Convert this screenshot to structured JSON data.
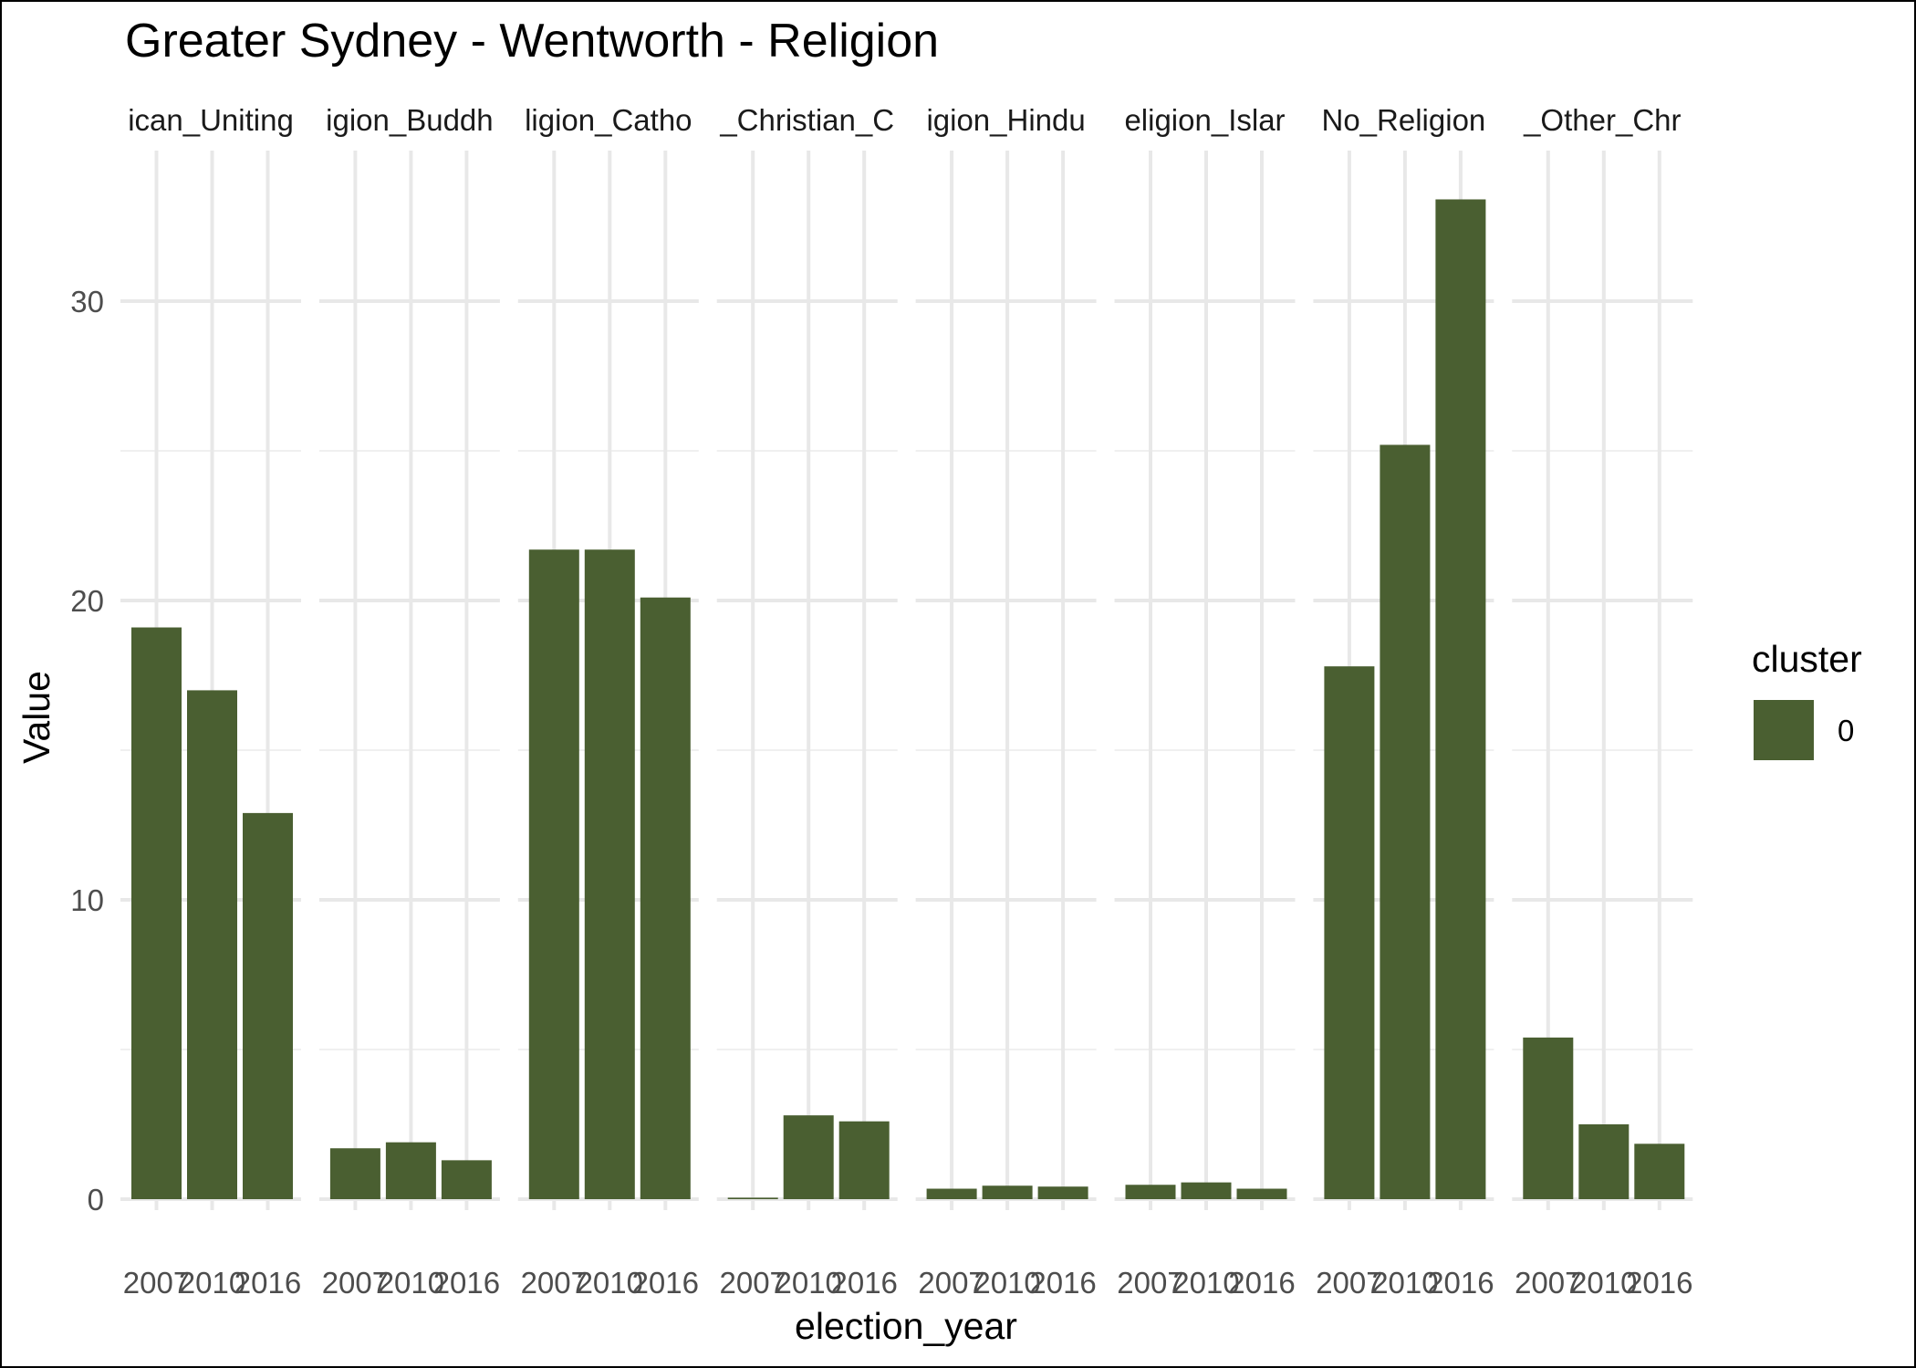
{
  "chart_data": {
    "type": "bar",
    "title": "Greater Sydney - Wentworth - Religion",
    "xlabel": "election_year",
    "ylabel": "Value",
    "ylim": [
      0,
      34.5
    ],
    "yticks": [
      0,
      10,
      20,
      30
    ],
    "grid": true,
    "legend_placement": "right",
    "legend": {
      "title": "cluster",
      "entries": [
        {
          "label": "0",
          "color": "#4a5f31"
        }
      ]
    },
    "bar_color": "#4a5f31",
    "categories": [
      "2007",
      "2010",
      "2016"
    ],
    "facets": [
      {
        "strip": "ican_Uniting",
        "values": [
          19.1,
          17.0,
          12.9
        ]
      },
      {
        "strip": "igion_Buddh",
        "values": [
          1.7,
          1.9,
          1.3
        ]
      },
      {
        "strip": "ligion_Catho",
        "values": [
          21.7,
          21.7,
          20.1
        ]
      },
      {
        "strip": "_Christian_C",
        "values": [
          0.05,
          2.8,
          2.6
        ]
      },
      {
        "strip": "igion_Hindu",
        "values": [
          0.35,
          0.45,
          0.42
        ]
      },
      {
        "strip": "eligion_Islar",
        "values": [
          0.48,
          0.56,
          0.35
        ]
      },
      {
        "strip": "No_Religion",
        "values": [
          17.8,
          25.2,
          33.4
        ]
      },
      {
        "strip": "_Other_Chr",
        "values": [
          5.4,
          2.5,
          1.85
        ]
      }
    ]
  }
}
